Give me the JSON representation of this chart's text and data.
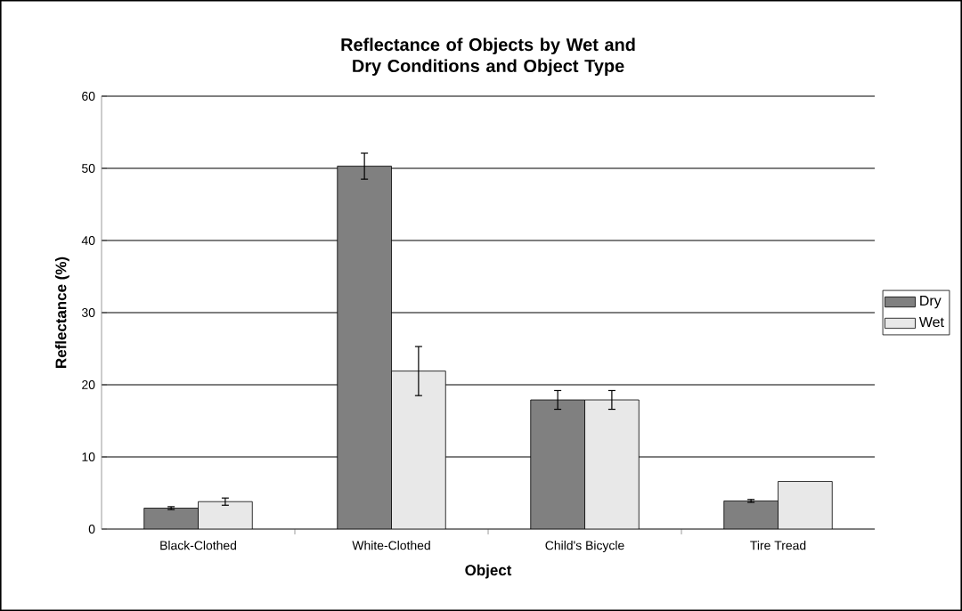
{
  "chart_data": {
    "type": "bar",
    "title": "Reflectance of Objects by Wet and Dry Conditions and Object Type",
    "xlabel": "Object",
    "ylabel": "Reflectance (%)",
    "categories": [
      "Black-Clothed",
      "White-Clothed",
      "Child's Bicycle",
      "Tire Tread"
    ],
    "series": [
      {
        "name": "Dry",
        "color": "#808080",
        "values": [
          2.9,
          50.3,
          17.9,
          3.9
        ],
        "errors": [
          0.2,
          1.8,
          1.3,
          0.2
        ]
      },
      {
        "name": "Wet",
        "color": "#e8e8e8",
        "values": [
          3.8,
          21.9,
          17.9,
          6.6
        ],
        "errors": [
          0.5,
          3.4,
          1.3,
          null
        ]
      }
    ],
    "ylim": [
      0,
      60
    ],
    "yticks": [
      0,
      10,
      20,
      30,
      40,
      50,
      60
    ],
    "grid": "y",
    "legend": "right"
  }
}
